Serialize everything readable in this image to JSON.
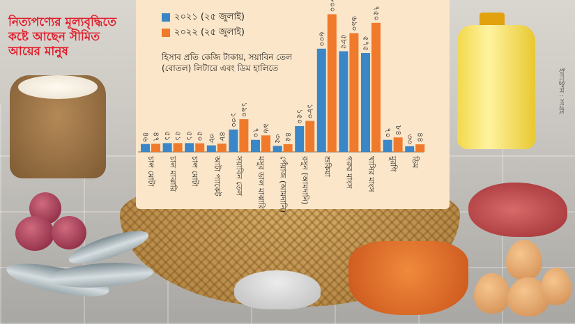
{
  "headline": "নিত্যপণ্যের মূল্যবৃদ্ধিতে কষ্টে আছেন সীমিত আয়ের মানুষ",
  "credit": "ইলাস্ট্রেশন : সংগ্রহ",
  "note": "হিসাব প্রতি কেজি টাকায়, সয়াবিন তেল (বোতল) লিটারে এবং ডিম হালিতে",
  "colors": {
    "s2021": "#3b86c6",
    "s2022": "#ef7a2c",
    "headline": "#e21d2b",
    "panel": "#fbe6c9"
  },
  "chart_data": {
    "type": "bar",
    "categories": [
      "চাল মোটা",
      "চাল মাঝারি",
      "চাল মোটা",
      "আটা প্যাকেট",
      "সয়াবিন তেল",
      "মসুর ডাল মাঝারি",
      "পেঁয়াজ (আমদানি)",
      "রসুন (আমদানি)",
      "শুকিয়া",
      "গরুর মাংস",
      "খাসির মাংস",
      "মুরগি",
      "ডিম"
    ],
    "series": [
      {
        "name": "২০২১ (২৫ জুলাই)",
        "values": [
          46,
          51,
          51,
          38,
          130,
          70,
          35,
          150,
          600,
          585,
          575,
          70,
          33
        ],
        "labels": [
          "৪৬",
          "৫১",
          "৫১",
          "৩৮",
          "১৩০",
          "৭০",
          "৩৫",
          "১৫০",
          "৬০০",
          "৫৮৫",
          "৫৭৫",
          "৭০",
          "৩৩"
        ]
      },
      {
        "name": "২০২২ (২৫ জুলাই)",
        "values": [
          47,
          51,
          50,
          48,
          190,
          96,
          45,
          180,
          800,
          690,
          750,
          84,
          44
        ],
        "labels": [
          "৪৭",
          "৫১",
          "৫০",
          "৪৮",
          "১৯০",
          "৯৬",
          "৪৫",
          "১৮০",
          "৮০০",
          "৬৯০",
          "৭৫০",
          "৮৪",
          "৪৪"
        ]
      }
    ],
    "xlabel": "",
    "ylabel": "",
    "ylim": [
      0,
      810
    ],
    "grid": false,
    "legend": "top-left"
  }
}
